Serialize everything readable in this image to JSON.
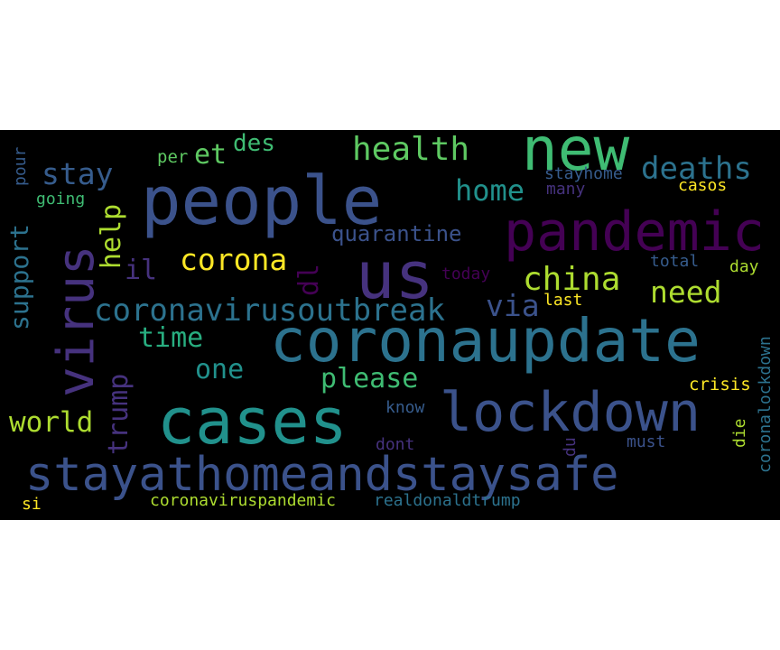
{
  "palette": {
    "background": "#000000",
    "dark_purple": "#440154",
    "purple": "#46327e",
    "indigo": "#3b528b",
    "blue": "#365c8d",
    "steel_blue": "#2c728e",
    "teal": "#21918c",
    "green_teal": "#28ae80",
    "green": "#3fbc73",
    "light_green": "#5ec962",
    "lime": "#addc30",
    "yellow": "#fde725"
  },
  "words": [
    {
      "text": "people",
      "color": "#3b528b"
    },
    {
      "text": "new",
      "color": "#3fbc73"
    },
    {
      "text": "pandemic",
      "color": "#440154"
    },
    {
      "text": "us",
      "color": "#46327e"
    },
    {
      "text": "coronaupdate",
      "color": "#2c728e"
    },
    {
      "text": "cases",
      "color": "#21918c"
    },
    {
      "text": "lockdown",
      "color": "#3b528b"
    },
    {
      "text": "stayathomeandstaysafe",
      "color": "#3b528b"
    },
    {
      "text": "virus",
      "color": "#46327e"
    },
    {
      "text": "coronavirusoutbreak",
      "color": "#2c728e"
    },
    {
      "text": "health",
      "color": "#5ec962"
    },
    {
      "text": "deaths",
      "color": "#2c728e"
    },
    {
      "text": "home",
      "color": "#21918c"
    },
    {
      "text": "china",
      "color": "#addc30"
    },
    {
      "text": "need",
      "color": "#addc30"
    },
    {
      "text": "corona",
      "color": "#fde725"
    },
    {
      "text": "stay",
      "color": "#365c8d"
    },
    {
      "text": "quarantine",
      "color": "#3b528b"
    },
    {
      "text": "via",
      "color": "#3b528b"
    },
    {
      "text": "time",
      "color": "#28ae80"
    },
    {
      "text": "one",
      "color": "#21918c"
    },
    {
      "text": "please",
      "color": "#3fbc73"
    },
    {
      "text": "world",
      "color": "#addc30"
    },
    {
      "text": "support",
      "color": "#2c728e"
    },
    {
      "text": "help",
      "color": "#addc30"
    },
    {
      "text": "trump",
      "color": "#46327e"
    },
    {
      "text": "il",
      "color": "#46327e"
    },
    {
      "text": "dl",
      "color": "#440154"
    },
    {
      "text": "et",
      "color": "#5ec962"
    },
    {
      "text": "des",
      "color": "#3fbc73"
    },
    {
      "text": "per",
      "color": "#5ec962"
    },
    {
      "text": "pour",
      "color": "#365c8d"
    },
    {
      "text": "going",
      "color": "#3fbc73"
    },
    {
      "text": "stayhome",
      "color": "#365c8d"
    },
    {
      "text": "many",
      "color": "#46327e"
    },
    {
      "text": "casos",
      "color": "#fde725"
    },
    {
      "text": "today",
      "color": "#440154"
    },
    {
      "text": "total",
      "color": "#365c8d"
    },
    {
      "text": "day",
      "color": "#addc30"
    },
    {
      "text": "last",
      "color": "#fde725"
    },
    {
      "text": "crisis",
      "color": "#fde725"
    },
    {
      "text": "coronalockdown",
      "color": "#2c728e"
    },
    {
      "text": "know",
      "color": "#365c8d"
    },
    {
      "text": "dont",
      "color": "#46327e"
    },
    {
      "text": "du",
      "color": "#46327e"
    },
    {
      "text": "must",
      "color": "#3b528b"
    },
    {
      "text": "die",
      "color": "#addc30"
    },
    {
      "text": "coronaviruspandemic",
      "color": "#addc30"
    },
    {
      "text": "realdonaldtrump",
      "color": "#2c728e"
    },
    {
      "text": "si",
      "color": "#fde725"
    }
  ]
}
